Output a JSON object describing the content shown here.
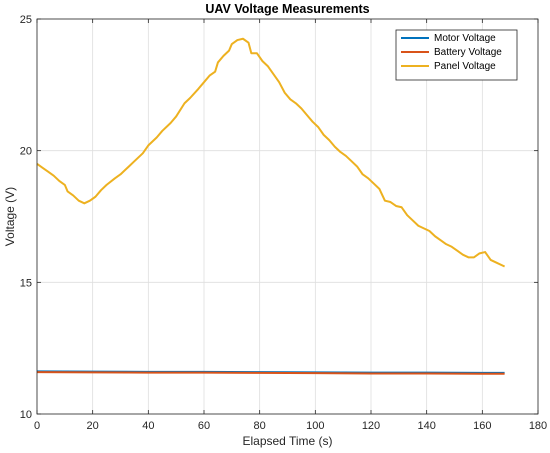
{
  "chart_data": {
    "type": "line",
    "title": "UAV Voltage Measurements",
    "xlabel": "Elapsed Time (s)",
    "ylabel": "Voltage (V)",
    "xlim": [
      0,
      180
    ],
    "ylim": [
      10,
      25
    ],
    "xticks": [
      0,
      20,
      40,
      60,
      80,
      100,
      120,
      140,
      160,
      180
    ],
    "yticks": [
      10,
      15,
      20,
      25
    ],
    "grid": true,
    "legend_position": "top-right",
    "series": [
      {
        "name": "Motor Voltage",
        "color": "#0072BD",
        "points": [
          [
            0,
            11.62
          ],
          [
            20,
            11.61
          ],
          [
            40,
            11.6
          ],
          [
            60,
            11.6
          ],
          [
            80,
            11.59
          ],
          [
            100,
            11.58
          ],
          [
            120,
            11.57
          ],
          [
            140,
            11.57
          ],
          [
            160,
            11.56
          ],
          [
            168,
            11.56
          ]
        ]
      },
      {
        "name": "Battery Voltage",
        "color": "#D95319",
        "points": [
          [
            0,
            11.59
          ],
          [
            20,
            11.58
          ],
          [
            40,
            11.57
          ],
          [
            60,
            11.57
          ],
          [
            80,
            11.56
          ],
          [
            100,
            11.55
          ],
          [
            120,
            11.54
          ],
          [
            140,
            11.54
          ],
          [
            160,
            11.53
          ],
          [
            168,
            11.53
          ]
        ]
      },
      {
        "name": "Panel Voltage",
        "color": "#EDB120",
        "points": [
          [
            0,
            19.5
          ],
          [
            2,
            19.35
          ],
          [
            4,
            19.2
          ],
          [
            6,
            19.05
          ],
          [
            8,
            18.85
          ],
          [
            10,
            18.7
          ],
          [
            11,
            18.45
          ],
          [
            13,
            18.3
          ],
          [
            15,
            18.1
          ],
          [
            17,
            18.0
          ],
          [
            19,
            18.1
          ],
          [
            21,
            18.25
          ],
          [
            23,
            18.5
          ],
          [
            25,
            18.7
          ],
          [
            28,
            18.95
          ],
          [
            30,
            19.1
          ],
          [
            33,
            19.4
          ],
          [
            35,
            19.6
          ],
          [
            38,
            19.9
          ],
          [
            40,
            20.2
          ],
          [
            43,
            20.5
          ],
          [
            45,
            20.75
          ],
          [
            48,
            21.05
          ],
          [
            50,
            21.3
          ],
          [
            53,
            21.8
          ],
          [
            55,
            22.0
          ],
          [
            58,
            22.35
          ],
          [
            60,
            22.6
          ],
          [
            62,
            22.85
          ],
          [
            64,
            23.0
          ],
          [
            65,
            23.35
          ],
          [
            67,
            23.6
          ],
          [
            69,
            23.8
          ],
          [
            70,
            24.05
          ],
          [
            72,
            24.2
          ],
          [
            74,
            24.25
          ],
          [
            76,
            24.1
          ],
          [
            77,
            23.7
          ],
          [
            79,
            23.7
          ],
          [
            81,
            23.4
          ],
          [
            83,
            23.2
          ],
          [
            85,
            22.9
          ],
          [
            87,
            22.6
          ],
          [
            89,
            22.2
          ],
          [
            91,
            21.95
          ],
          [
            93,
            21.8
          ],
          [
            95,
            21.6
          ],
          [
            97,
            21.35
          ],
          [
            99,
            21.1
          ],
          [
            101,
            20.9
          ],
          [
            103,
            20.6
          ],
          [
            105,
            20.4
          ],
          [
            107,
            20.15
          ],
          [
            109,
            19.95
          ],
          [
            111,
            19.8
          ],
          [
            113,
            19.6
          ],
          [
            115,
            19.4
          ],
          [
            117,
            19.1
          ],
          [
            119,
            18.95
          ],
          [
            121,
            18.75
          ],
          [
            123,
            18.55
          ],
          [
            125,
            18.1
          ],
          [
            127,
            18.05
          ],
          [
            129,
            17.9
          ],
          [
            131,
            17.85
          ],
          [
            133,
            17.55
          ],
          [
            135,
            17.35
          ],
          [
            137,
            17.15
          ],
          [
            139,
            17.05
          ],
          [
            141,
            16.95
          ],
          [
            143,
            16.75
          ],
          [
            145,
            16.6
          ],
          [
            147,
            16.45
          ],
          [
            149,
            16.35
          ],
          [
            151,
            16.2
          ],
          [
            153,
            16.05
          ],
          [
            155,
            15.95
          ],
          [
            157,
            15.95
          ],
          [
            159,
            16.1
          ],
          [
            161,
            16.15
          ],
          [
            163,
            15.85
          ],
          [
            165,
            15.75
          ],
          [
            168,
            15.6
          ]
        ]
      }
    ]
  }
}
